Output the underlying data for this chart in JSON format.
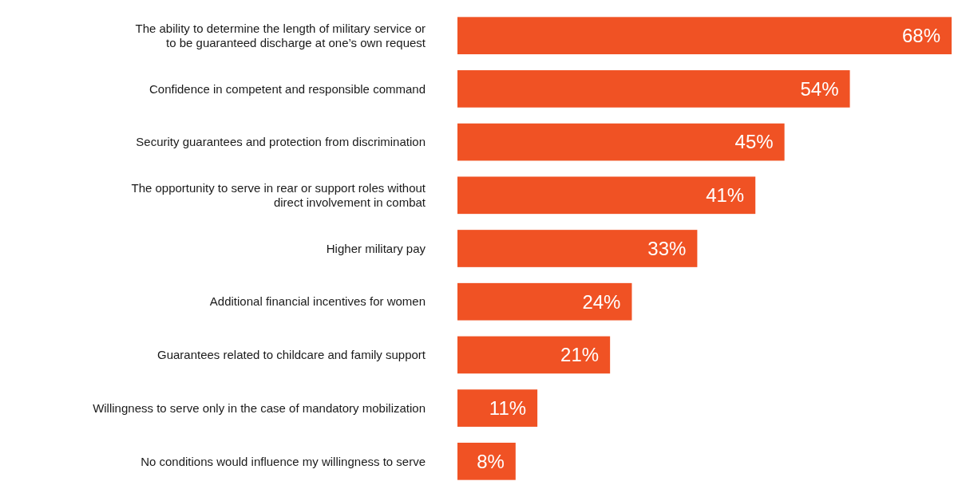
{
  "chart_data": {
    "type": "bar",
    "orientation": "horizontal",
    "categories": [
      "The ability to determine the length of military service or to be guaranteed discharge at one’s own request",
      "Confidence in competent and responsible command",
      "Security guarantees and protection from discrimination",
      "The opportunity to serve in rear or support roles without direct involvement in combat",
      "Higher military pay",
      "Additional financial incentives for women",
      "Guarantees related to childcare and family support",
      "Willingness to serve only in the case of mandatory mobilization",
      "No conditions would influence my willingness to serve"
    ],
    "values": [
      68,
      54,
      45,
      41,
      33,
      24,
      21,
      11,
      8
    ],
    "value_labels": [
      "68%",
      "54%",
      "45%",
      "41%",
      "33%",
      "24%",
      "21%",
      "11%",
      "8%"
    ],
    "color": "#f05224"
  }
}
